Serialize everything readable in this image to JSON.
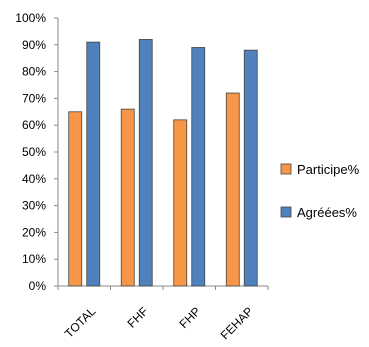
{
  "chart_data": {
    "type": "bar",
    "categories": [
      "TOTAL",
      "FHF",
      "FHP",
      "FEHAP"
    ],
    "series": [
      {
        "name": "Participe%",
        "values": [
          65,
          66,
          62,
          72
        ],
        "color": "#f79646"
      },
      {
        "name": "Agréées%",
        "values": [
          91,
          92,
          89,
          88
        ],
        "color": "#4f81bd"
      }
    ],
    "y_ticks": [
      "0%",
      "10%",
      "20%",
      "30%",
      "40%",
      "50%",
      "60%",
      "70%",
      "80%",
      "90%",
      "100%"
    ],
    "ylim": [
      0,
      100
    ],
    "grid": false,
    "legend_position": "right"
  }
}
